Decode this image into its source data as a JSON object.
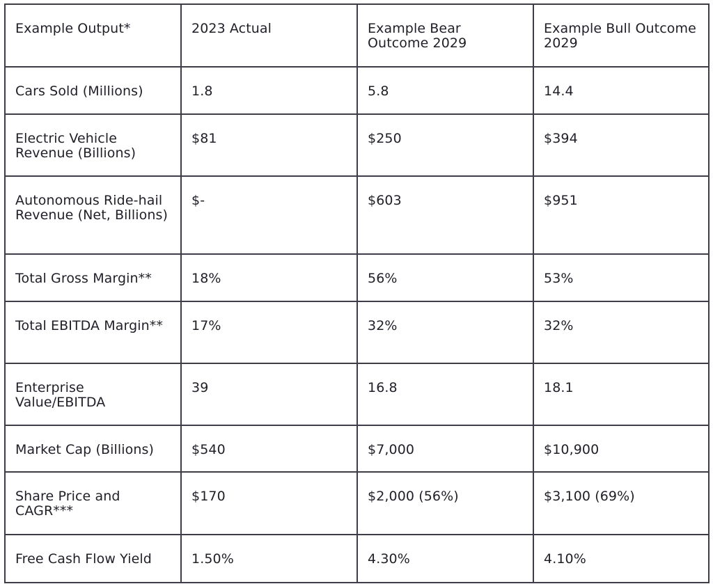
{
  "table": {
    "headers": [
      "Example Output*",
      "2023 Actual",
      "Example Bear Outcome 2029",
      "Example Bull Outcome 2029"
    ],
    "rows": [
      [
        "Cars Sold (Millions)",
        "1.8",
        "5.8",
        "14.4"
      ],
      [
        "Electric Vehicle Revenue (Billions)",
        "$81",
        "$250",
        "$394"
      ],
      [
        "Autonomous Ride-hail Revenue (Net, Billions)",
        "$-",
        "$603",
        "$951"
      ],
      [
        "Total Gross Margin**",
        "18%",
        "56%",
        "53%"
      ],
      [
        "Total EBITDA Margin**",
        "17%",
        "32%",
        "32%"
      ],
      [
        "Enterprise Value/EBITDA",
        "39",
        "16.8",
        "18.1"
      ],
      [
        "Market Cap (Billions)",
        "$540",
        "$7,000",
        "$10,900"
      ],
      [
        "Share Price and CAGR***",
        "$170",
        "$2,000 (56%)",
        "$3,100 (69%)"
      ],
      [
        "Free Cash Flow Yield",
        "1.50%",
        "4.30%",
        "4.10%"
      ]
    ]
  }
}
